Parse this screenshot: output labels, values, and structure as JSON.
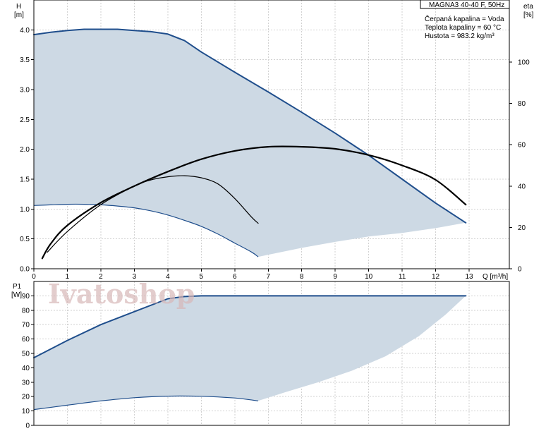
{
  "chart_data": [
    {
      "type": "area",
      "title": "MAGNA3 40-40 F, 50Hz",
      "info": [
        "Čerpaná kapalina = Voda",
        "Teplota kapaliny = 60 °C",
        "Hustota = 983.2 kg/m³"
      ],
      "y_label_top": "H",
      "y_unit": "[m]",
      "y2_label_top": "eta",
      "y2_unit": "[%]",
      "x_label": "Q [m³/h]",
      "xlim": [
        0,
        14.2
      ],
      "ylim": [
        0,
        4.5
      ],
      "y2lim": [
        0,
        130
      ],
      "x_ticks": [
        0,
        1,
        2,
        3,
        4,
        5,
        6,
        7,
        8,
        9,
        10,
        11,
        12,
        13
      ],
      "y_ticks": [
        0.0,
        0.5,
        1.0,
        1.5,
        2.0,
        2.5,
        3.0,
        3.5,
        4.0
      ],
      "y_tick_labels": [
        "0.0",
        "0.5",
        "1.0",
        "1.5",
        "2.0",
        "2.5",
        "3.0",
        "3.5",
        "4.0"
      ],
      "y2_ticks": [
        0,
        20,
        40,
        60,
        80,
        100
      ],
      "grid": true,
      "series": [
        {
          "role": "H max",
          "x": [
            0,
            0.5,
            1,
            1.5,
            2,
            2.5,
            3,
            3.5,
            4,
            4.5,
            5,
            6,
            7,
            8,
            9,
            10,
            11,
            12,
            12.9
          ],
          "y": [
            3.92,
            3.96,
            3.99,
            4.01,
            4.01,
            4.01,
            3.99,
            3.97,
            3.93,
            3.82,
            3.63,
            3.29,
            2.96,
            2.62,
            2.27,
            1.9,
            1.5,
            1.1,
            0.77
          ]
        },
        {
          "role": "H min",
          "x": [
            0,
            0.5,
            1,
            1.5,
            2,
            2.5,
            3,
            3.5,
            4,
            4.5,
            5,
            5.5,
            6,
            6.5,
            6.7
          ],
          "y": [
            1.06,
            1.07,
            1.08,
            1.08,
            1.07,
            1.05,
            1.02,
            0.97,
            0.9,
            0.81,
            0.71,
            0.58,
            0.43,
            0.28,
            0.2
          ]
        },
        {
          "role": "area bottom",
          "x": [
            6.7,
            8,
            9,
            10,
            11,
            12,
            12.9
          ],
          "y": [
            0.2,
            0.35,
            0.45,
            0.54,
            0.6,
            0.68,
            0.77
          ]
        },
        {
          "role": "eta max",
          "x": [
            0.25,
            0.5,
            1,
            2,
            3,
            4,
            5,
            6,
            7,
            8,
            9,
            10,
            11,
            12,
            12.9
          ],
          "y": [
            5,
            12,
            21,
            32,
            40,
            47,
            53,
            57,
            59,
            59,
            58,
            55,
            50,
            43,
            31
          ]
        },
        {
          "role": "eta min",
          "x": [
            0.4,
            1,
            2,
            3,
            3.5,
            4,
            4.5,
            5,
            5.5,
            6,
            6.5,
            6.7
          ],
          "y": [
            8,
            18,
            31,
            40,
            43,
            44.5,
            45,
            44,
            41,
            34,
            25,
            22
          ]
        }
      ]
    },
    {
      "type": "area",
      "y_label_top": "P1",
      "y_unit": "[W]",
      "xlim": [
        0,
        14.2
      ],
      "ylim": [
        0,
        100
      ],
      "y_ticks": [
        0,
        10,
        20,
        30,
        40,
        50,
        60,
        70,
        80,
        90
      ],
      "grid": true,
      "series": [
        {
          "role": "P1 max",
          "x": [
            0,
            1,
            2,
            3,
            4,
            4.5,
            5,
            6,
            7,
            8,
            9,
            10,
            11,
            12,
            12.9
          ],
          "y": [
            47,
            59,
            70,
            79,
            88,
            89.5,
            90,
            90,
            90,
            90,
            90,
            90,
            90,
            90,
            90
          ]
        },
        {
          "role": "P1 min",
          "x": [
            0,
            1,
            2,
            3,
            4,
            5,
            6,
            6.7
          ],
          "y": [
            11,
            14,
            17,
            19.2,
            20.3,
            20.2,
            19,
            17
          ]
        },
        {
          "role": "area bottom",
          "x": [
            6.7,
            7.5,
            8.5,
            9.5,
            10.5,
            11.5,
            12.3,
            12.9
          ],
          "y": [
            17,
            23,
            30,
            38,
            48,
            62,
            77,
            90
          ]
        }
      ]
    }
  ],
  "watermark": "Ivatoshop"
}
